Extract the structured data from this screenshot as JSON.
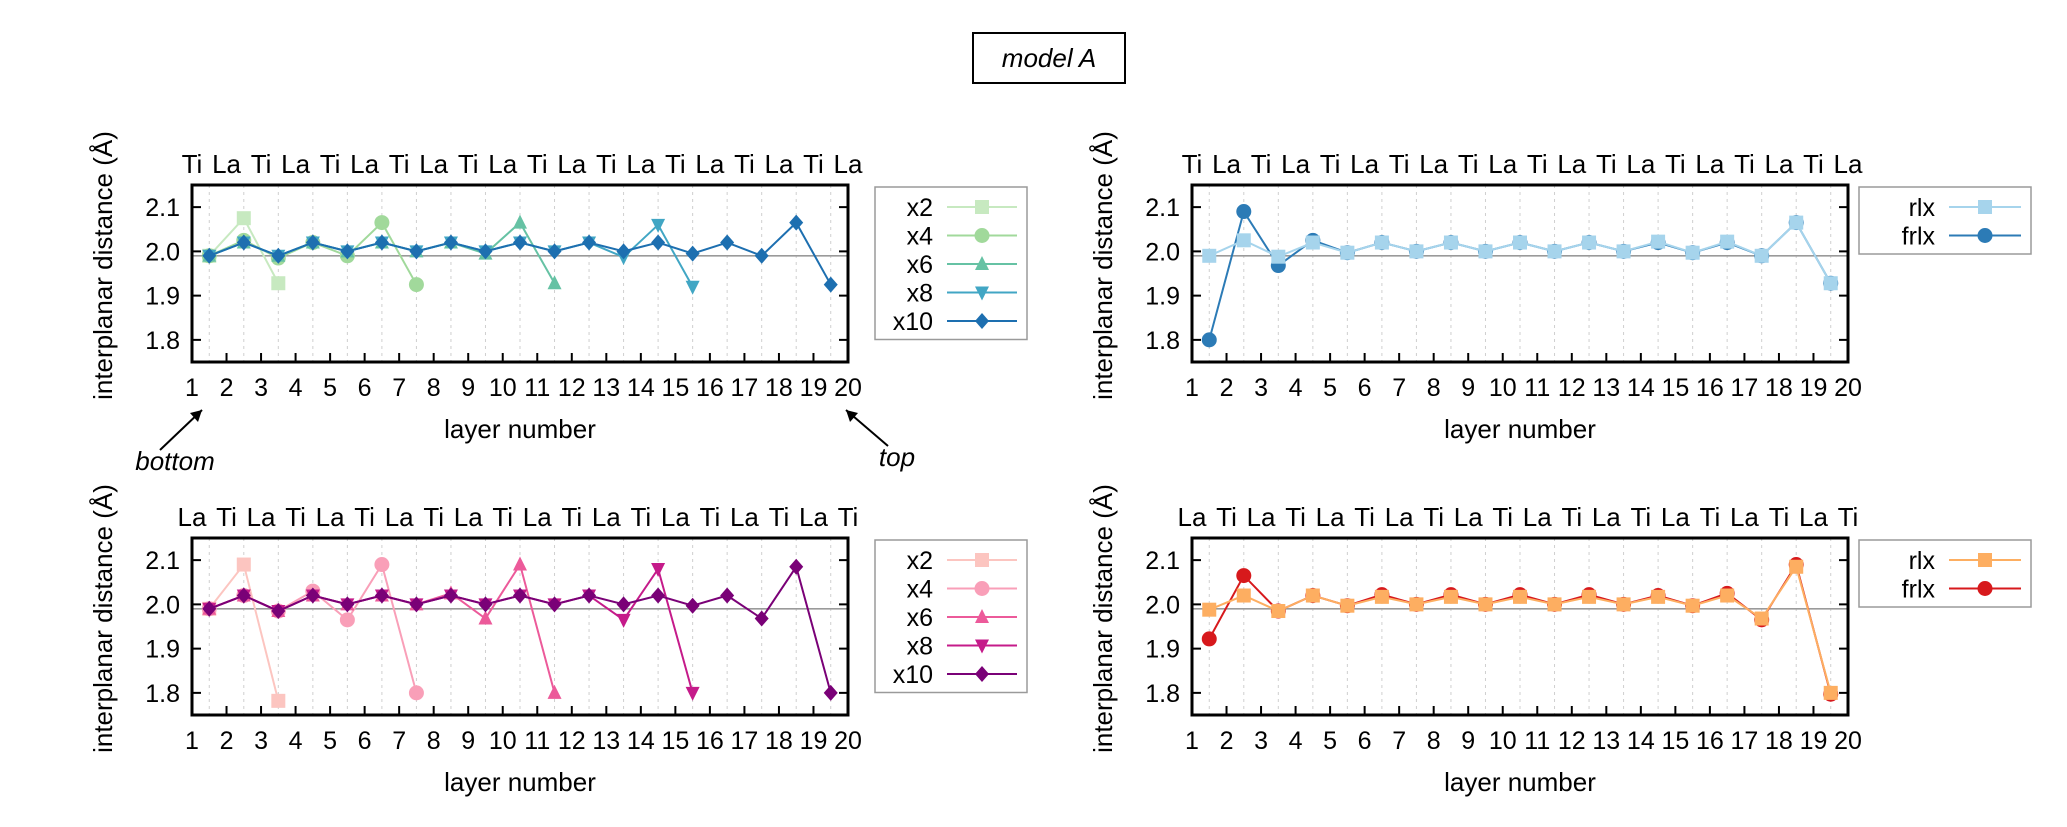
{
  "title": "model A",
  "annotations": {
    "bottom": "bottom",
    "top": "top"
  },
  "chart_data": [
    {
      "type": "line",
      "panel": "top-left",
      "xlabel": "layer number",
      "ylabel": "interplanar distance (Å)",
      "xlim": [
        1,
        20
      ],
      "ylim": [
        1.75,
        2.15
      ],
      "yticks": [
        1.8,
        1.9,
        2.0,
        2.1
      ],
      "ytick_labels": [
        "1.8",
        "1.9",
        "2.0",
        "2.1"
      ],
      "xticks": [
        1,
        2,
        3,
        4,
        5,
        6,
        7,
        8,
        9,
        10,
        11,
        12,
        13,
        14,
        15,
        16,
        17,
        18,
        19,
        20
      ],
      "xtick_labels": [
        "1",
        "2",
        "3",
        "4",
        "5",
        "6",
        "7",
        "8",
        "9",
        "10",
        "11",
        "12",
        "13",
        "14",
        "15",
        "16",
        "17",
        "18",
        "19",
        "20"
      ],
      "top_labels": [
        "Ti",
        "La",
        "Ti",
        "La",
        "Ti",
        "La",
        "Ti",
        "La",
        "Ti",
        "La",
        "Ti",
        "La",
        "Ti",
        "La",
        "Ti",
        "La",
        "Ti",
        "La",
        "Ti",
        "La"
      ],
      "reference_line": 1.99,
      "grid": "vertical-dashed",
      "legend": "outside-right",
      "series": [
        {
          "name": "x2",
          "marker": "square",
          "color": "#c7e9c0",
          "x": [
            1.5,
            2.5,
            3.5
          ],
          "y": [
            1.99,
            2.075,
            1.928
          ]
        },
        {
          "name": "x4",
          "marker": "circle",
          "color": "#a1d99b",
          "x": [
            1.5,
            2.5,
            3.5,
            4.5,
            5.5,
            6.5,
            7.5
          ],
          "y": [
            1.99,
            2.025,
            1.985,
            2.02,
            1.99,
            2.065,
            1.925
          ]
        },
        {
          "name": "x6",
          "marker": "triangle-up",
          "color": "#66c2a4",
          "x": [
            1.5,
            2.5,
            3.5,
            4.5,
            5.5,
            6.5,
            7.5,
            8.5,
            9.5,
            10.5,
            11.5
          ],
          "y": [
            1.99,
            2.02,
            1.99,
            2.02,
            2.0,
            2.02,
            2.0,
            2.02,
            1.995,
            2.065,
            1.928
          ]
        },
        {
          "name": "x8",
          "marker": "triangle-down",
          "color": "#41a6c4",
          "x": [
            1.5,
            2.5,
            3.5,
            4.5,
            5.5,
            6.5,
            7.5,
            8.5,
            9.5,
            10.5,
            11.5,
            12.5,
            13.5,
            14.5,
            15.5
          ],
          "y": [
            1.99,
            2.02,
            1.99,
            2.02,
            2.0,
            2.02,
            2.0,
            2.02,
            2.0,
            2.02,
            2.0,
            2.02,
            1.987,
            2.06,
            1.92
          ]
        },
        {
          "name": "x10",
          "marker": "diamond",
          "color": "#1d6fb0",
          "x": [
            1.5,
            2.5,
            3.5,
            4.5,
            5.5,
            6.5,
            7.5,
            8.5,
            9.5,
            10.5,
            11.5,
            12.5,
            13.5,
            14.5,
            15.5,
            16.5,
            17.5,
            18.5,
            19.5
          ],
          "y": [
            1.99,
            2.02,
            1.99,
            2.02,
            2.0,
            2.02,
            2.0,
            2.02,
            2.0,
            2.02,
            2.0,
            2.02,
            2.0,
            2.02,
            1.995,
            2.02,
            1.99,
            2.065,
            1.925
          ]
        }
      ]
    },
    {
      "type": "line",
      "panel": "top-right",
      "xlabel": "layer number",
      "ylabel": "interplanar distance (Å)",
      "xlim": [
        1,
        20
      ],
      "ylim": [
        1.75,
        2.15
      ],
      "yticks": [
        1.8,
        1.9,
        2.0,
        2.1
      ],
      "ytick_labels": [
        "1.8",
        "1.9",
        "2.0",
        "2.1"
      ],
      "xticks": [
        1,
        2,
        3,
        4,
        5,
        6,
        7,
        8,
        9,
        10,
        11,
        12,
        13,
        14,
        15,
        16,
        17,
        18,
        19,
        20
      ],
      "xtick_labels": [
        "1",
        "2",
        "3",
        "4",
        "5",
        "6",
        "7",
        "8",
        "9",
        "10",
        "11",
        "12",
        "13",
        "14",
        "15",
        "16",
        "17",
        "18",
        "19",
        "20"
      ],
      "top_labels": [
        "Ti",
        "La",
        "Ti",
        "La",
        "Ti",
        "La",
        "Ti",
        "La",
        "Ti",
        "La",
        "Ti",
        "La",
        "Ti",
        "La",
        "Ti",
        "La",
        "Ti",
        "La",
        "Ti",
        "La"
      ],
      "reference_line": 1.99,
      "grid": "vertical-dashed",
      "legend": "outside-right",
      "series": [
        {
          "name": "frlx",
          "marker": "circle",
          "color": "#2c7bb6",
          "x": [
            1.5,
            2.5,
            3.5,
            4.5,
            5.5,
            6.5,
            7.5,
            8.5,
            9.5,
            10.5,
            11.5,
            12.5,
            13.5,
            14.5,
            15.5,
            16.5,
            17.5,
            18.5,
            19.5
          ],
          "y": [
            1.8,
            2.09,
            1.968,
            2.025,
            1.997,
            2.02,
            2.0,
            2.02,
            2.0,
            2.02,
            2.0,
            2.02,
            2.0,
            2.02,
            1.997,
            2.02,
            1.99,
            2.065,
            1.928
          ]
        },
        {
          "name": "rlx",
          "marker": "square",
          "color": "#a6d4ec",
          "x": [
            1.5,
            2.5,
            3.5,
            4.5,
            5.5,
            6.5,
            7.5,
            8.5,
            9.5,
            10.5,
            11.5,
            12.5,
            13.5,
            14.5,
            15.5,
            16.5,
            17.5,
            18.5,
            19.5
          ],
          "y": [
            1.99,
            2.025,
            1.988,
            2.02,
            1.997,
            2.02,
            2.0,
            2.02,
            2.0,
            2.02,
            2.0,
            2.02,
            2.0,
            2.022,
            1.997,
            2.022,
            1.99,
            2.065,
            1.928
          ]
        }
      ]
    },
    {
      "type": "line",
      "panel": "bottom-left",
      "xlabel": "layer number",
      "ylabel": "interplanar distance (Å)",
      "xlim": [
        1,
        20
      ],
      "ylim": [
        1.75,
        2.15
      ],
      "yticks": [
        1.8,
        1.9,
        2.0,
        2.1
      ],
      "ytick_labels": [
        "1.8",
        "1.9",
        "2.0",
        "2.1"
      ],
      "xticks": [
        1,
        2,
        3,
        4,
        5,
        6,
        7,
        8,
        9,
        10,
        11,
        12,
        13,
        14,
        15,
        16,
        17,
        18,
        19,
        20
      ],
      "xtick_labels": [
        "1",
        "2",
        "3",
        "4",
        "5",
        "6",
        "7",
        "8",
        "9",
        "10",
        "11",
        "12",
        "13",
        "14",
        "15",
        "16",
        "17",
        "18",
        "19",
        "20"
      ],
      "top_labels": [
        "La",
        "Ti",
        "La",
        "Ti",
        "La",
        "Ti",
        "La",
        "Ti",
        "La",
        "Ti",
        "La",
        "Ti",
        "La",
        "Ti",
        "La",
        "Ti",
        "La",
        "Ti",
        "La",
        "Ti"
      ],
      "reference_line": 1.99,
      "grid": "vertical-dashed",
      "legend": "outside-right",
      "series": [
        {
          "name": "x2",
          "marker": "square",
          "color": "#fcc5c0",
          "x": [
            1.5,
            2.5,
            3.5
          ],
          "y": [
            1.99,
            2.09,
            1.782
          ]
        },
        {
          "name": "x4",
          "marker": "circle",
          "color": "#f99fb8",
          "x": [
            1.5,
            2.5,
            3.5,
            4.5,
            5.5,
            6.5,
            7.5
          ],
          "y": [
            1.99,
            2.02,
            1.985,
            2.03,
            1.965,
            2.09,
            1.8
          ]
        },
        {
          "name": "x6",
          "marker": "triangle-up",
          "color": "#ec5a9a",
          "x": [
            1.5,
            2.5,
            3.5,
            4.5,
            5.5,
            6.5,
            7.5,
            8.5,
            9.5,
            10.5,
            11.5
          ],
          "y": [
            1.99,
            2.02,
            1.985,
            2.02,
            2.0,
            2.02,
            2.0,
            2.025,
            1.968,
            2.09,
            1.8
          ]
        },
        {
          "name": "x8",
          "marker": "triangle-down",
          "color": "#c51b8a",
          "x": [
            1.5,
            2.5,
            3.5,
            4.5,
            5.5,
            6.5,
            7.5,
            8.5,
            9.5,
            10.5,
            11.5,
            12.5,
            13.5,
            14.5,
            15.5
          ],
          "y": [
            1.99,
            2.02,
            1.985,
            2.02,
            2.0,
            2.02,
            2.0,
            2.02,
            2.0,
            2.02,
            2.0,
            2.02,
            1.965,
            2.08,
            1.8
          ]
        },
        {
          "name": "x10",
          "marker": "diamond",
          "color": "#7a0177",
          "x": [
            1.5,
            2.5,
            3.5,
            4.5,
            5.5,
            6.5,
            7.5,
            8.5,
            9.5,
            10.5,
            11.5,
            12.5,
            13.5,
            14.5,
            15.5,
            16.5,
            17.5,
            18.5,
            19.5
          ],
          "y": [
            1.99,
            2.02,
            1.985,
            2.02,
            2.0,
            2.02,
            2.0,
            2.02,
            2.0,
            2.02,
            2.0,
            2.02,
            2.0,
            2.02,
            1.997,
            2.02,
            1.968,
            2.085,
            1.8
          ]
        }
      ]
    },
    {
      "type": "line",
      "panel": "bottom-right",
      "xlabel": "layer number",
      "ylabel": "interplanar distance (Å)",
      "xlim": [
        1,
        20
      ],
      "ylim": [
        1.75,
        2.15
      ],
      "yticks": [
        1.8,
        1.9,
        2.0,
        2.1
      ],
      "ytick_labels": [
        "1.8",
        "1.9",
        "2.0",
        "2.1"
      ],
      "xticks": [
        1,
        2,
        3,
        4,
        5,
        6,
        7,
        8,
        9,
        10,
        11,
        12,
        13,
        14,
        15,
        16,
        17,
        18,
        19,
        20
      ],
      "xtick_labels": [
        "1",
        "2",
        "3",
        "4",
        "5",
        "6",
        "7",
        "8",
        "9",
        "10",
        "11",
        "12",
        "13",
        "14",
        "15",
        "16",
        "17",
        "18",
        "19",
        "20"
      ],
      "top_labels": [
        "La",
        "Ti",
        "La",
        "Ti",
        "La",
        "Ti",
        "La",
        "Ti",
        "La",
        "Ti",
        "La",
        "Ti",
        "La",
        "Ti",
        "La",
        "Ti",
        "La",
        "Ti",
        "La",
        "Ti"
      ],
      "reference_line": 1.99,
      "grid": "vertical-dashed",
      "legend": "outside-right",
      "series": [
        {
          "name": "frlx",
          "marker": "circle",
          "color": "#d7191c",
          "x": [
            1.5,
            2.5,
            3.5,
            4.5,
            5.5,
            6.5,
            7.5,
            8.5,
            9.5,
            10.5,
            11.5,
            12.5,
            13.5,
            14.5,
            15.5,
            16.5,
            17.5,
            18.5,
            19.5
          ],
          "y": [
            1.922,
            2.065,
            1.985,
            2.02,
            1.997,
            2.022,
            2.0,
            2.022,
            2.0,
            2.022,
            2.0,
            2.022,
            2.0,
            2.02,
            1.997,
            2.025,
            1.965,
            2.09,
            1.797
          ]
        },
        {
          "name": "rlx",
          "marker": "square",
          "color": "#fdae61",
          "x": [
            1.5,
            2.5,
            3.5,
            4.5,
            5.5,
            6.5,
            7.5,
            8.5,
            9.5,
            10.5,
            11.5,
            12.5,
            13.5,
            14.5,
            15.5,
            16.5,
            17.5,
            18.5,
            19.5
          ],
          "y": [
            1.988,
            2.02,
            1.985,
            2.02,
            1.997,
            2.017,
            2.0,
            2.017,
            2.0,
            2.017,
            2.0,
            2.017,
            2.0,
            2.017,
            1.997,
            2.02,
            1.968,
            2.085,
            1.8
          ]
        }
      ]
    }
  ]
}
